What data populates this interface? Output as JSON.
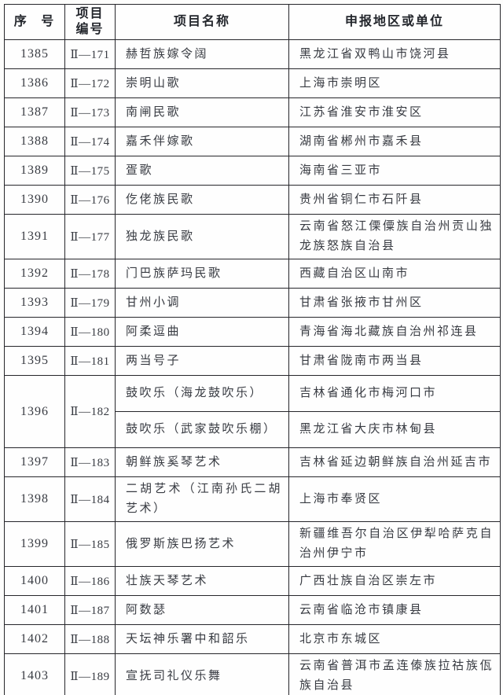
{
  "document": {
    "kind": "scanned-table-page",
    "colors": {
      "border": "#26262b",
      "body_text": "#383b42",
      "header_text": "#23262c",
      "paper": "#fdfdfc"
    }
  },
  "table": {
    "headers": {
      "serial": "序 号",
      "code": "项目\n编号",
      "name": "项目名称",
      "region": "申报地区或单位"
    },
    "rows": [
      {
        "no": "1385",
        "code": "Ⅱ—171",
        "name": "赫哲族嫁令阔",
        "region": "黑龙江省双鸭山市饶河县"
      },
      {
        "no": "1386",
        "code": "Ⅱ—172",
        "name": "崇明山歌",
        "region": "上海市崇明区"
      },
      {
        "no": "1387",
        "code": "Ⅱ—173",
        "name": "南闸民歌",
        "region": "江苏省淮安市淮安区"
      },
      {
        "no": "1388",
        "code": "Ⅱ—174",
        "name": "嘉禾伴嫁歌",
        "region": "湖南省郴州市嘉禾县"
      },
      {
        "no": "1389",
        "code": "Ⅱ—175",
        "name": "疍歌",
        "region": "海南省三亚市"
      },
      {
        "no": "1390",
        "code": "Ⅱ—176",
        "name": "仡佬族民歌",
        "region": "贵州省铜仁市石阡县"
      },
      {
        "no": "1391",
        "code": "Ⅱ—177",
        "name": "独龙族民歌",
        "region": "云南省怒江傈僳族自治州贡山独龙族怒族自治县",
        "tall": true
      },
      {
        "no": "1392",
        "code": "Ⅱ—178",
        "name": "门巴族萨玛民歌",
        "region": "西藏自治区山南市"
      },
      {
        "no": "1393",
        "code": "Ⅱ—179",
        "name": "甘州小调",
        "region": "甘肃省张掖市甘州区"
      },
      {
        "no": "1394",
        "code": "Ⅱ—180",
        "name": "阿柔逗曲",
        "region": "青海省海北藏族自治州祁连县"
      },
      {
        "no": "1395",
        "code": "Ⅱ—181",
        "name": "两当号子",
        "region": "甘肃省陇南市两当县"
      },
      {
        "no": "1396",
        "code": "Ⅱ—182",
        "subrows": [
          {
            "name": "鼓吹乐（海龙鼓吹乐）",
            "region": "吉林省通化市梅河口市"
          },
          {
            "name": "鼓吹乐（武家鼓吹乐棚）",
            "region": "黑龙江省大庆市林甸县"
          }
        ]
      },
      {
        "no": "1397",
        "code": "Ⅱ—183",
        "name": "朝鲜族奚琴艺术",
        "region": "吉林省延边朝鲜族自治州延吉市"
      },
      {
        "no": "1398",
        "code": "Ⅱ—184",
        "name": "二胡艺术（江南孙氏二胡艺术）",
        "region": "上海市奉贤区",
        "tall": true
      },
      {
        "no": "1399",
        "code": "Ⅱ—185",
        "name": "俄罗斯族巴扬艺术",
        "region": "新疆维吾尔自治区伊犁哈萨克自治州伊宁市",
        "tall": true
      },
      {
        "no": "1400",
        "code": "Ⅱ—186",
        "name": "壮族天琴艺术",
        "region": "广西壮族自治区崇左市"
      },
      {
        "no": "1401",
        "code": "Ⅱ—187",
        "name": "阿数瑟",
        "region": "云南省临沧市镇康县"
      },
      {
        "no": "1402",
        "code": "Ⅱ—188",
        "name": "天坛神乐署中和韶乐",
        "region": "北京市东城区"
      },
      {
        "no": "1403",
        "code": "Ⅱ—189",
        "name": "宣抚司礼仪乐舞",
        "region": "云南省普洱市孟连傣族拉祜族佤族自治县",
        "tall": true
      }
    ]
  }
}
